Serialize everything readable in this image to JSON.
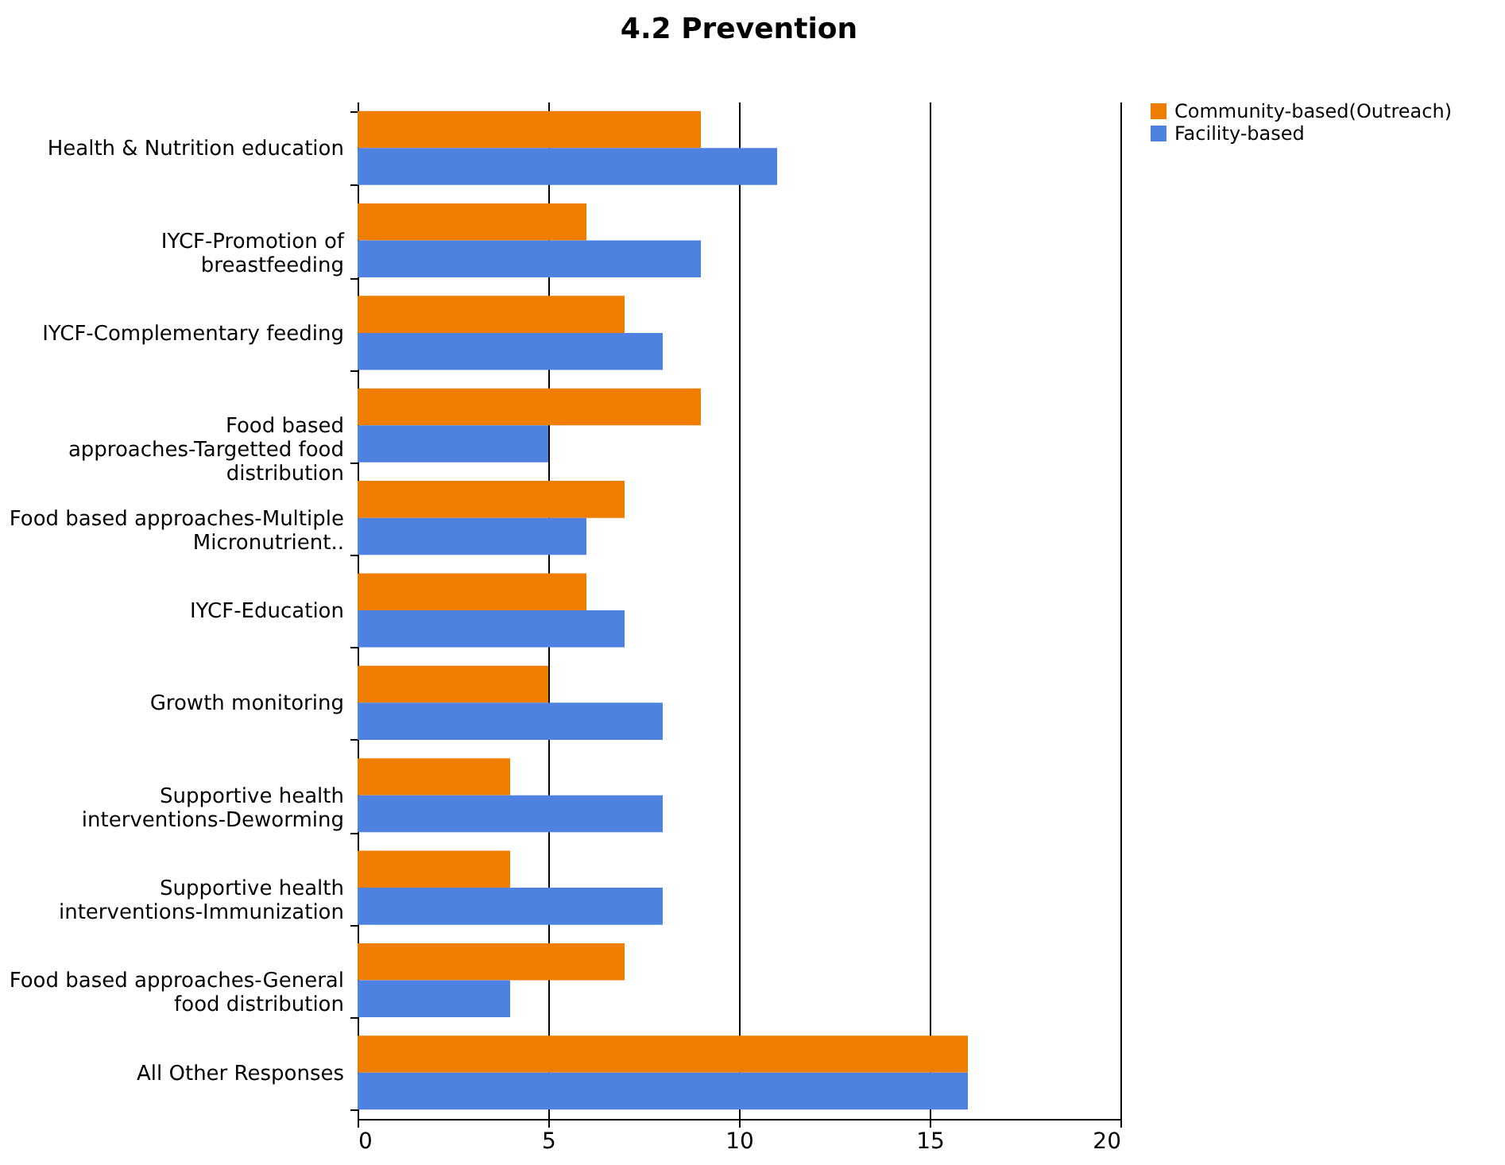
{
  "chart_data": {
    "type": "bar",
    "orientation": "horizontal",
    "title": "4.2  Prevention",
    "categories": [
      "Health & Nutrition education",
      "IYCF-Promotion of breastfeeding",
      "IYCF-Complementary feeding",
      "Food based approaches-Targetted food distribution",
      "Food based approaches-Multiple Micronutrient..",
      "IYCF-Education",
      "Growth monitoring",
      "Supportive health interventions-Deworming",
      "Supportive health interventions-Immunization",
      "Food based approaches-General food distribution",
      "All Other Responses"
    ],
    "series": [
      {
        "name": "Community-based(Outreach)",
        "color": "#ee7d00",
        "values": [
          9,
          6,
          7,
          9,
          7,
          6,
          5,
          4,
          4,
          7,
          16
        ]
      },
      {
        "name": "Facility-based",
        "color": "#4f82e0",
        "values": [
          11,
          9,
          8,
          5,
          6,
          7,
          8,
          8,
          8,
          4,
          16
        ]
      }
    ],
    "xlim": [
      0,
      20
    ],
    "xticks": [
      0,
      5,
      10,
      15,
      20
    ],
    "grid": "x",
    "legend": "right"
  }
}
